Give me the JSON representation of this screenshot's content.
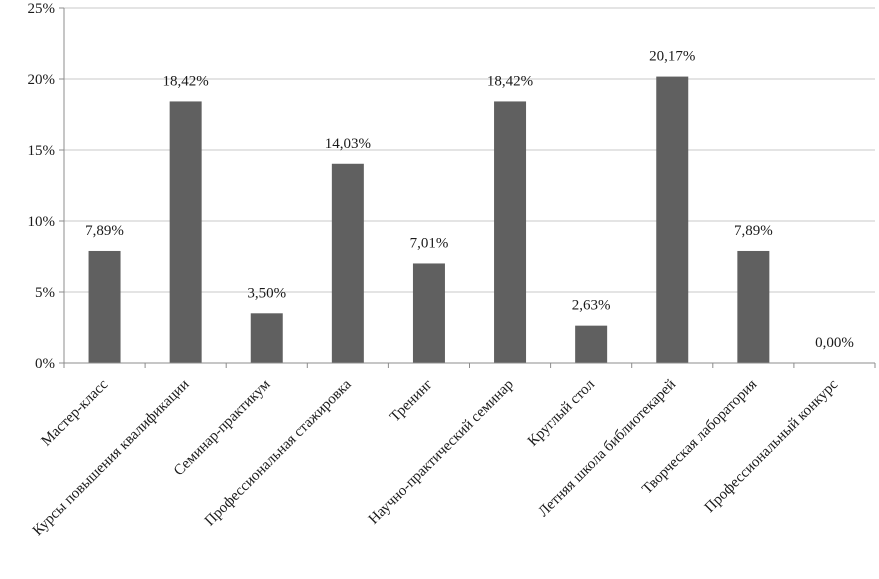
{
  "chart_data": {
    "type": "bar",
    "categories": [
      "Мастер-класс",
      "Курсы повышения квалификации",
      "Семинар-практикум",
      "Профессиональная стажировка",
      "Тренинг",
      "Научно-практический семинар",
      "Круглый стол",
      "Летняя школа библиотекарей",
      "Творческая лаборатория",
      "Профессиональный конкурс"
    ],
    "values": [
      7.89,
      18.42,
      3.5,
      14.03,
      7.01,
      18.42,
      2.63,
      20.17,
      7.89,
      0.0
    ],
    "data_labels": [
      "7,89%",
      "18,42%",
      "3,50%",
      "14,03%",
      "7,01%",
      "18,42%",
      "2,63%",
      "20,17%",
      "7,89%",
      "0,00%"
    ],
    "ylim": [
      0,
      25
    ],
    "yticks": [
      0,
      5,
      10,
      15,
      20,
      25
    ],
    "ytick_labels": [
      "0%",
      "5%",
      "10%",
      "15%",
      "20%",
      "25%"
    ],
    "grid": true,
    "legend": "none",
    "title": "",
    "xlabel": "",
    "ylabel": "",
    "colors": {
      "bar": "#606060",
      "grid": "#c8c8c8",
      "axis": "#8c8c8c"
    }
  }
}
